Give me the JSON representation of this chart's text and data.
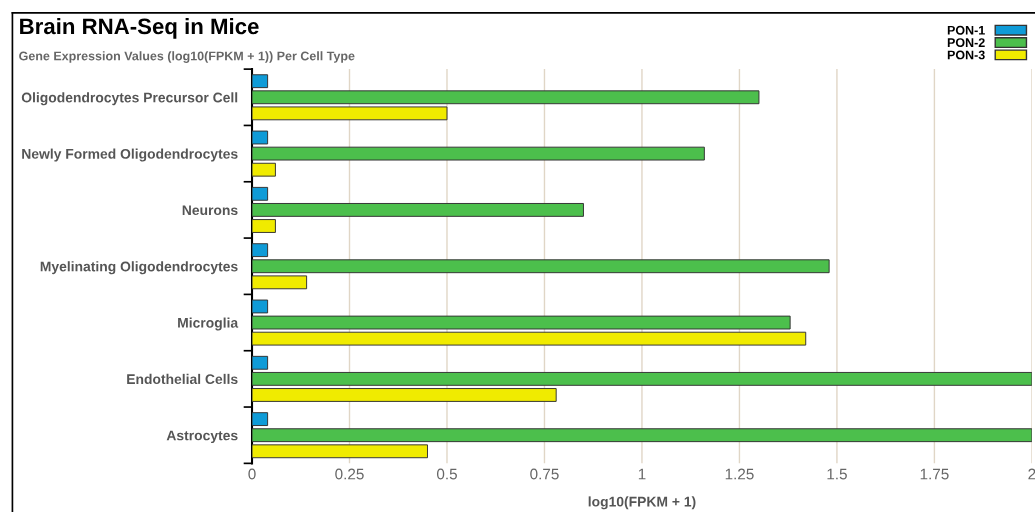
{
  "chart_data": {
    "type": "bar",
    "orientation": "horizontal",
    "title": "Brain RNA-Seq in Mice",
    "subtitle": "Gene Expression Values (log10(FPKM + 1)) Per Cell Type",
    "xlabel": "log10(FPKM + 1)",
    "categories": [
      "Oligodendrocytes Precursor Cell",
      "Newly Formed Oligodendrocytes",
      "Neurons",
      "Myelinating Oligodendrocytes",
      "Microglia",
      "Endothelial Cells",
      "Astrocytes"
    ],
    "series": [
      {
        "name": "PON-1",
        "color": "#0f9bd7",
        "values": [
          0.04,
          0.04,
          0.04,
          0.04,
          0.04,
          0.04,
          0.04
        ]
      },
      {
        "name": "PON-2",
        "color": "#4cbf4c",
        "values": [
          1.3,
          1.16,
          0.85,
          1.48,
          1.38,
          2.0,
          2.0
        ]
      },
      {
        "name": "PON-3",
        "color": "#f0eb00",
        "values": [
          0.5,
          0.06,
          0.06,
          0.14,
          1.42,
          0.78,
          0.45
        ]
      }
    ],
    "xlim": [
      0,
      2
    ],
    "xticks": [
      0,
      0.25,
      0.5,
      0.75,
      1,
      1.25,
      1.5,
      1.75,
      2
    ],
    "grid": "x",
    "legend": "top right"
  }
}
